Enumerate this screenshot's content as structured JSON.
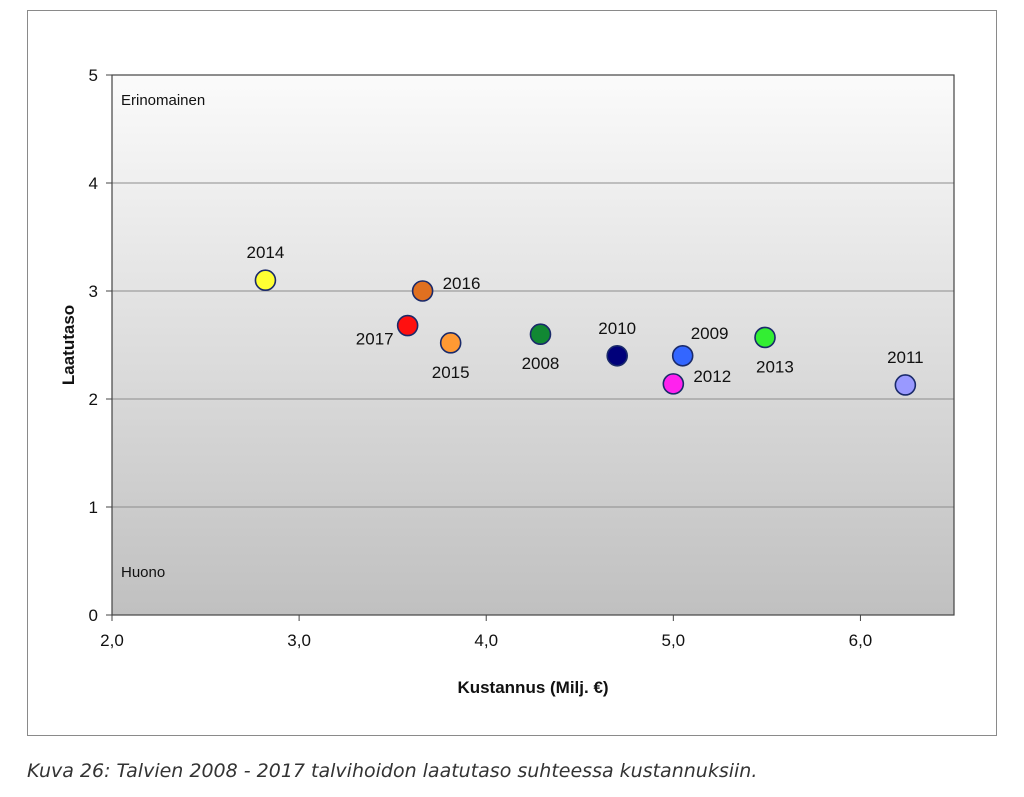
{
  "chart_data": {
    "type": "scatter",
    "xlabel": "Kustannus (Milj. €)",
    "ylabel": "Laatutaso",
    "xlim": [
      2.0,
      6.5
    ],
    "ylim": [
      0,
      5
    ],
    "xticks": [
      2.0,
      3.0,
      4.0,
      5.0,
      6.0
    ],
    "xtick_labels": [
      "2,0",
      "3,0",
      "4,0",
      "5,0",
      "6,0"
    ],
    "yticks": [
      0,
      1,
      2,
      3,
      4,
      5
    ],
    "ytick_labels": [
      "0",
      "1",
      "2",
      "3",
      "4",
      "5"
    ],
    "grid": true,
    "annotations": {
      "top": "Erinomainen",
      "bottom": "Huono"
    },
    "points": [
      {
        "label": "2014",
        "x": 2.82,
        "y": 3.1,
        "color": "#ffff33",
        "label_pos": "above"
      },
      {
        "label": "2016",
        "x": 3.66,
        "y": 3.0,
        "color": "#e07020",
        "label_pos": "right"
      },
      {
        "label": "2017",
        "x": 3.58,
        "y": 2.68,
        "color": "#ff1010",
        "label_pos": "left"
      },
      {
        "label": "2015",
        "x": 3.81,
        "y": 2.52,
        "color": "#ff9933",
        "label_pos": "below"
      },
      {
        "label": "2008",
        "x": 4.29,
        "y": 2.6,
        "color": "#118833",
        "label_pos": "below"
      },
      {
        "label": "2010",
        "x": 4.7,
        "y": 2.4,
        "color": "#00007a",
        "label_pos": "above"
      },
      {
        "label": "2009",
        "x": 5.05,
        "y": 2.4,
        "color": "#3366ff",
        "label_pos": "above-right"
      },
      {
        "label": "2012",
        "x": 5.0,
        "y": 2.14,
        "color": "#ff22ee",
        "label_pos": "right"
      },
      {
        "label": "2013",
        "x": 5.49,
        "y": 2.57,
        "color": "#33ee33",
        "label_pos": "below-right"
      },
      {
        "label": "2011",
        "x": 6.24,
        "y": 2.13,
        "color": "#9999ff",
        "label_pos": "above"
      }
    ]
  },
  "caption": "Kuva 26: Talvien 2008 - 2017 talvihoidon laatutaso suhteessa kustannuksiin.",
  "colors": {
    "plot_top": "#fbfbfb",
    "plot_bottom": "#c0c0c0",
    "grid": "#8c8c8c",
    "marker_stroke": "#1a2a6a"
  }
}
